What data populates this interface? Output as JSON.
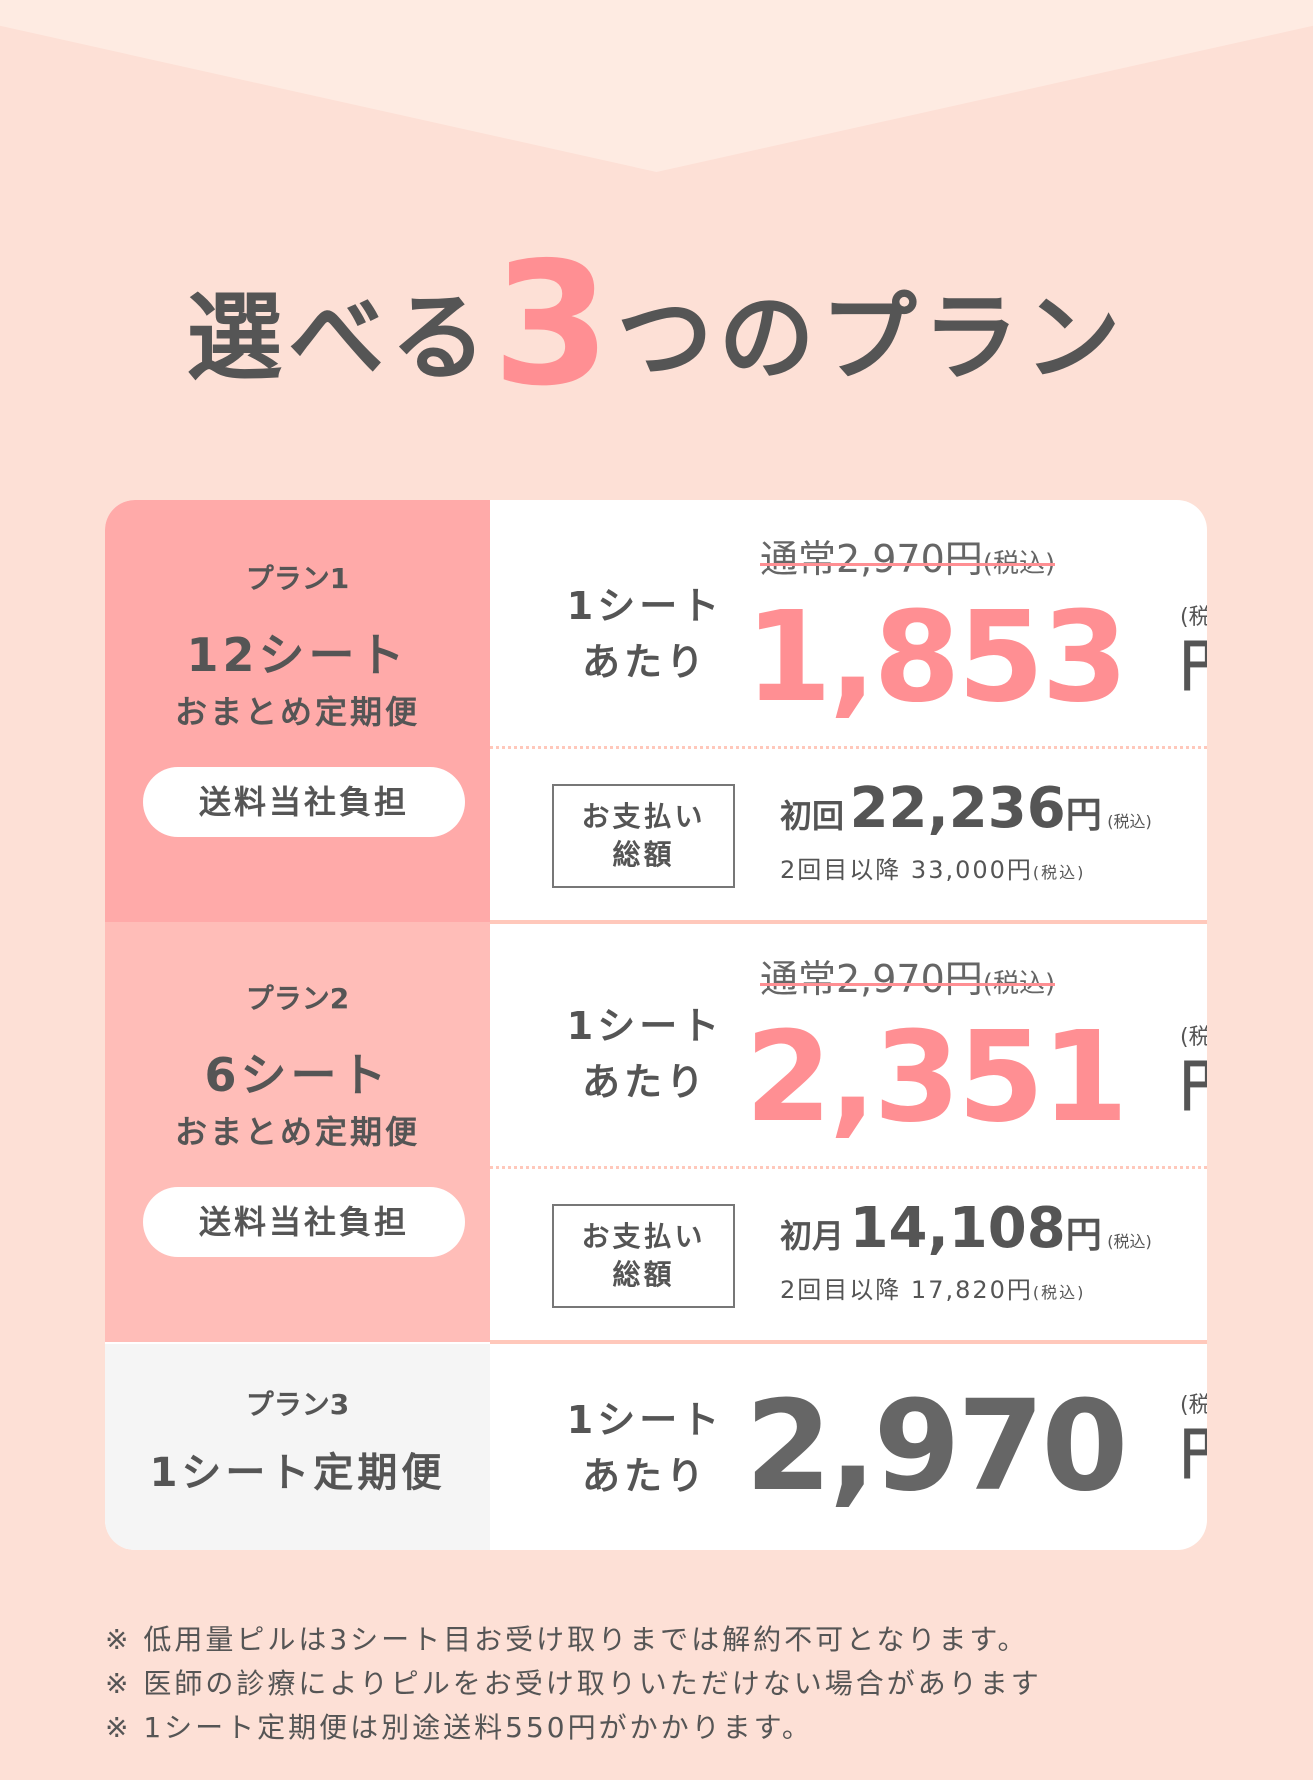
{
  "title": {
    "before": "選べる",
    "number": "3",
    "after": "つのプラン"
  },
  "colors": {
    "background": "#fde0d6",
    "accent_pink": "#ff8f93",
    "plan1_bg": "#ffaaa9",
    "plan2_bg": "#ffbdb8",
    "plan3_bg": "#f5f5f5",
    "text": "#555555"
  },
  "plans": [
    {
      "label": "プラン1",
      "name": "12シート",
      "sub": "おまとめ定期便",
      "badge": "送料当社負担",
      "per_sheet": "1シート\nあたり",
      "regular": "通常2,970円",
      "regular_tax": "(税込)",
      "price": "1,853",
      "yen": "円",
      "tax": "(税込)",
      "pay_label": "お支払い\n総額",
      "first_label": "初回",
      "first_amount": "22,236",
      "second_label": "2回目以降",
      "second_amount": "33,000円"
    },
    {
      "label": "プラン2",
      "name": "6シート",
      "sub": "おまとめ定期便",
      "badge": "送料当社負担",
      "per_sheet": "1シート\nあたり",
      "regular": "通常2,970円",
      "regular_tax": "(税込)",
      "price": "2,351",
      "yen": "円",
      "tax": "(税込)",
      "pay_label": "お支払い\n総額",
      "first_label": "初月",
      "first_amount": "14,108",
      "second_label": "2回目以降",
      "second_amount": "17,820円"
    },
    {
      "label": "プラン3",
      "name": "1シート定期便",
      "per_sheet": "1シート\nあたり",
      "price": "2,970",
      "yen": "円",
      "tax": "(税込)"
    }
  ],
  "notes": [
    "※ 低用量ピルは3シート目お受け取りまでは解約不可となります。",
    "※ 医師の診療によりピルをお受け取りいただけない場合があります",
    "※ 1シート定期便は別途送料550円がかかります。"
  ]
}
